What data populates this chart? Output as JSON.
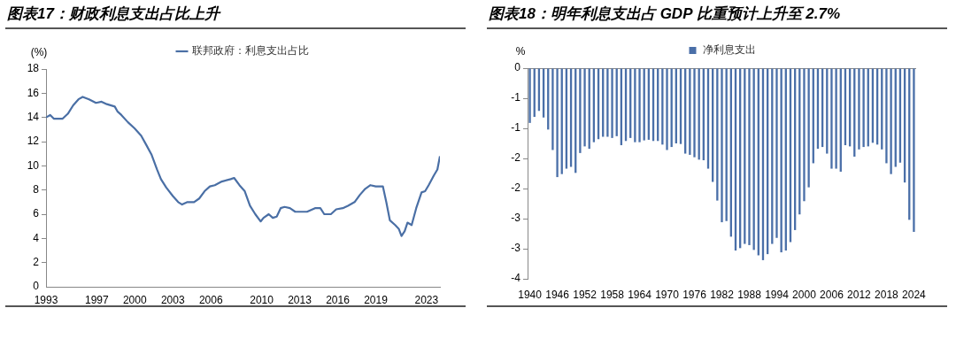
{
  "chart_data": [
    {
      "type": "line",
      "title": "图表17：财政利息支出占比上升",
      "ylabel": "(%)",
      "legend": "top",
      "marker": "none",
      "x": [
        1993.0,
        1993.33,
        1993.61,
        1994.31,
        1994.72,
        1995.14,
        1995.56,
        1995.89,
        1996.39,
        1996.94,
        1997.38,
        1997.79,
        1998.42,
        1998.63,
        1998.94,
        1999.46,
        1999.98,
        2000.5,
        2000.92,
        2001.33,
        2001.75,
        2002.06,
        2002.48,
        2003.0,
        2003.42,
        2003.73,
        2004.15,
        2004.67,
        2005.08,
        2005.5,
        2005.92,
        2006.31,
        2006.86,
        2007.56,
        2007.83,
        2008.25,
        2008.67,
        2009.08,
        2009.5,
        2009.92,
        2010.15,
        2010.56,
        2010.88,
        2011.19,
        2011.5,
        2011.81,
        2012.23,
        2012.65,
        2013.06,
        2013.58,
        2014.21,
        2014.63,
        2014.94,
        2015.46,
        2015.88,
        2016.4,
        2016.81,
        2017.33,
        2017.75,
        2018.17,
        2018.58,
        2019.0,
        2019.56,
        2019.83,
        2020.11,
        2020.53,
        2020.81,
        2021.03,
        2021.28,
        2021.5,
        2021.83,
        2022.19,
        2022.61,
        2022.89,
        2023.17,
        2023.58,
        2023.86,
        2024.06
      ],
      "series": [
        {
          "name": "联邦政府：利息支出占比",
          "color": "#4a6fa5",
          "values": [
            14.0,
            14.2,
            13.9,
            13.9,
            14.3,
            15.0,
            15.5,
            15.7,
            15.5,
            15.2,
            15.3,
            15.1,
            14.9,
            14.5,
            14.2,
            13.6,
            13.1,
            12.5,
            11.7,
            10.9,
            9.7,
            8.9,
            8.2,
            7.5,
            7.0,
            6.8,
            7.0,
            7.0,
            7.3,
            7.9,
            8.3,
            8.4,
            8.7,
            8.9,
            9.0,
            8.4,
            7.9,
            6.7,
            6.0,
            5.4,
            5.7,
            6.0,
            5.7,
            5.8,
            6.5,
            6.6,
            6.5,
            6.2,
            6.2,
            6.2,
            6.5,
            6.5,
            6.0,
            6.0,
            6.4,
            6.5,
            6.7,
            7.0,
            7.6,
            8.1,
            8.4,
            8.3,
            8.3,
            7.0,
            5.5,
            5.1,
            4.8,
            4.2,
            4.6,
            5.3,
            5.1,
            6.5,
            7.8,
            7.9,
            8.4,
            9.2,
            9.7,
            10.8
          ]
        }
      ],
      "xlim": [
        1993,
        2024.06
      ],
      "xticks": [
        1993,
        1997,
        2000,
        2003,
        2006,
        2010,
        2013,
        2016,
        2019,
        2023
      ],
      "ylim": [
        0,
        18
      ],
      "yticks": [
        0,
        2,
        4,
        6,
        8,
        10,
        12,
        14,
        16,
        18
      ]
    },
    {
      "type": "bar",
      "title": "图表18：明年利息支出占 GDP 比重预计上升至 2.7%",
      "ylabel": "%",
      "legend": "top",
      "categories": [
        "1940",
        null,
        null,
        null,
        null,
        null,
        "1946",
        null,
        null,
        null,
        null,
        null,
        "1952",
        null,
        null,
        null,
        null,
        null,
        "1958",
        null,
        null,
        null,
        null,
        null,
        "1964",
        null,
        null,
        null,
        null,
        null,
        "1970",
        null,
        null,
        null,
        null,
        null,
        "1976",
        null,
        null,
        null,
        null,
        null,
        "1982",
        null,
        null,
        null,
        null,
        null,
        "1988",
        null,
        null,
        null,
        null,
        null,
        "1994",
        null,
        null,
        null,
        null,
        null,
        "2000",
        null,
        null,
        null,
        null,
        null,
        "2006",
        null,
        null,
        null,
        null,
        null,
        "2012",
        null,
        null,
        null,
        null,
        null,
        "2018",
        null,
        null,
        null,
        null,
        null,
        "2024"
      ],
      "series": [
        {
          "name": "净利息支出",
          "color": "#4a6fa8",
          "values": [
            -0.91,
            -0.81,
            -0.71,
            -0.82,
            -1.02,
            -1.36,
            -1.81,
            -1.76,
            -1.67,
            -1.64,
            -1.74,
            -1.41,
            -1.3,
            -1.34,
            -1.23,
            -1.18,
            -1.14,
            -1.14,
            -1.16,
            -1.13,
            -1.28,
            -1.21,
            -1.16,
            -1.23,
            -1.23,
            -1.2,
            -1.19,
            -1.21,
            -1.21,
            -1.27,
            -1.36,
            -1.31,
            -1.25,
            -1.26,
            -1.42,
            -1.44,
            -1.48,
            -1.52,
            -1.53,
            -1.67,
            -1.89,
            -2.2,
            -2.56,
            -2.54,
            -2.8,
            -3.03,
            -2.99,
            -2.92,
            -2.94,
            -3.02,
            -3.11,
            -3.19,
            -3.09,
            -2.92,
            -2.82,
            -3.06,
            -3.03,
            -2.89,
            -2.69,
            -2.43,
            -2.21,
            -1.98,
            -1.58,
            -1.34,
            -1.31,
            -1.42,
            -1.67,
            -1.67,
            -1.72,
            -1.28,
            -1.3,
            -1.47,
            -1.35,
            -1.31,
            -1.3,
            -1.24,
            -1.27,
            -1.35,
            -1.58,
            -1.76,
            -1.64,
            -1.57,
            -1.9,
            -2.52,
            -2.72
          ]
        }
      ],
      "ylim": [
        -3.5,
        0
      ],
      "yticks": [
        0,
        {
          "value": -0.5,
          "label": "-1"
        },
        -1,
        {
          "value": -1.5,
          "label": "-2"
        },
        -2,
        {
          "value": -2.5,
          "label": "-3"
        },
        -3,
        {
          "value": -3.5,
          "label": "-4"
        }
      ]
    }
  ]
}
